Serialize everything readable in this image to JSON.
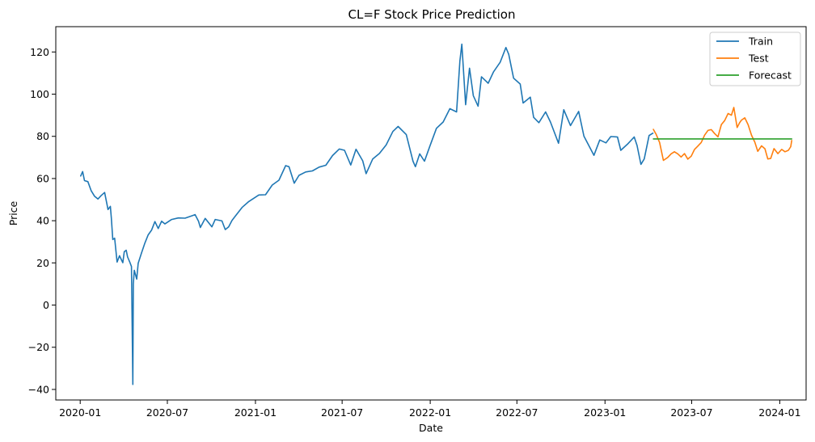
{
  "chart_data": {
    "type": "line",
    "title": "CL=F Stock Price Prediction",
    "xlabel": "Date",
    "ylabel": "Price",
    "xlim": [
      "2019-11-11",
      "2024-02-25"
    ],
    "ylim": [
      -45,
      132
    ],
    "x_ticks": [
      "2020-01",
      "2020-07",
      "2021-01",
      "2021-07",
      "2022-01",
      "2022-07",
      "2023-01",
      "2023-07",
      "2024-01"
    ],
    "y_ticks": [
      -40,
      -20,
      0,
      20,
      40,
      60,
      80,
      100,
      120
    ],
    "grid": false,
    "legend": "top-right",
    "series": [
      {
        "name": "Train",
        "color": "#1f77b4",
        "points": [
          [
            "2020-01-02",
            61.2
          ],
          [
            "2020-01-06",
            63.3
          ],
          [
            "2020-01-10",
            59.0
          ],
          [
            "2020-01-17",
            58.5
          ],
          [
            "2020-01-24",
            54.2
          ],
          [
            "2020-01-31",
            51.6
          ],
          [
            "2020-02-07",
            50.3
          ],
          [
            "2020-02-14",
            52.0
          ],
          [
            "2020-02-21",
            53.4
          ],
          [
            "2020-02-28",
            45.3
          ],
          [
            "2020-03-04",
            46.8
          ],
          [
            "2020-03-06",
            41.3
          ],
          [
            "2020-03-09",
            31.1
          ],
          [
            "2020-03-13",
            31.7
          ],
          [
            "2020-03-18",
            20.4
          ],
          [
            "2020-03-23",
            23.4
          ],
          [
            "2020-03-30",
            20.1
          ],
          [
            "2020-04-02",
            25.3
          ],
          [
            "2020-04-06",
            26.0
          ],
          [
            "2020-04-09",
            22.8
          ],
          [
            "2020-04-14",
            20.1
          ],
          [
            "2020-04-17",
            18.3
          ],
          [
            "2020-04-20",
            -37.6
          ],
          [
            "2020-04-21",
            10.0
          ],
          [
            "2020-04-23",
            16.5
          ],
          [
            "2020-04-28",
            12.3
          ],
          [
            "2020-05-01",
            19.8
          ],
          [
            "2020-05-08",
            24.7
          ],
          [
            "2020-05-15",
            29.4
          ],
          [
            "2020-05-22",
            33.3
          ],
          [
            "2020-05-29",
            35.5
          ],
          [
            "2020-06-05",
            39.6
          ],
          [
            "2020-06-12",
            36.3
          ],
          [
            "2020-06-19",
            39.8
          ],
          [
            "2020-06-26",
            38.5
          ],
          [
            "2020-07-10",
            40.6
          ],
          [
            "2020-07-24",
            41.3
          ],
          [
            "2020-08-07",
            41.2
          ],
          [
            "2020-08-21",
            42.3
          ],
          [
            "2020-08-28",
            42.9
          ],
          [
            "2020-09-04",
            39.8
          ],
          [
            "2020-09-08",
            36.8
          ],
          [
            "2020-09-18",
            41.1
          ],
          [
            "2020-10-02",
            37.1
          ],
          [
            "2020-10-09",
            40.6
          ],
          [
            "2020-10-23",
            39.9
          ],
          [
            "2020-10-30",
            35.8
          ],
          [
            "2020-11-06",
            37.1
          ],
          [
            "2020-11-13",
            40.1
          ],
          [
            "2020-11-20",
            42.2
          ],
          [
            "2020-12-04",
            46.3
          ],
          [
            "2020-12-18",
            49.1
          ],
          [
            "2021-01-08",
            52.2
          ],
          [
            "2021-01-22",
            52.3
          ],
          [
            "2021-02-05",
            56.9
          ],
          [
            "2021-02-19",
            59.2
          ],
          [
            "2021-03-05",
            66.1
          ],
          [
            "2021-03-12",
            65.6
          ],
          [
            "2021-03-23",
            57.8
          ],
          [
            "2021-04-02",
            61.5
          ],
          [
            "2021-04-16",
            63.1
          ],
          [
            "2021-04-30",
            63.6
          ],
          [
            "2021-05-14",
            65.4
          ],
          [
            "2021-05-28",
            66.3
          ],
          [
            "2021-06-11",
            70.9
          ],
          [
            "2021-06-25",
            74.0
          ],
          [
            "2021-07-06",
            73.4
          ],
          [
            "2021-07-19",
            66.4
          ],
          [
            "2021-07-30",
            73.9
          ],
          [
            "2021-08-13",
            68.4
          ],
          [
            "2021-08-20",
            62.3
          ],
          [
            "2021-09-03",
            69.3
          ],
          [
            "2021-09-17",
            71.9
          ],
          [
            "2021-10-01",
            75.9
          ],
          [
            "2021-10-15",
            82.3
          ],
          [
            "2021-10-26",
            84.7
          ],
          [
            "2021-11-12",
            80.8
          ],
          [
            "2021-11-26",
            68.2
          ],
          [
            "2021-12-01",
            65.6
          ],
          [
            "2021-12-10",
            71.7
          ],
          [
            "2021-12-20",
            68.2
          ],
          [
            "2021-12-31",
            75.2
          ],
          [
            "2022-01-14",
            83.8
          ],
          [
            "2022-01-28",
            86.8
          ],
          [
            "2022-02-11",
            93.1
          ],
          [
            "2022-02-25",
            91.6
          ],
          [
            "2022-03-04",
            115.7
          ],
          [
            "2022-03-08",
            123.7
          ],
          [
            "2022-03-16",
            95.0
          ],
          [
            "2022-03-24",
            112.3
          ],
          [
            "2022-04-01",
            99.3
          ],
          [
            "2022-04-11",
            94.3
          ],
          [
            "2022-04-18",
            108.2
          ],
          [
            "2022-05-02",
            105.2
          ],
          [
            "2022-05-13",
            110.5
          ],
          [
            "2022-05-27",
            115.1
          ],
          [
            "2022-06-08",
            122.1
          ],
          [
            "2022-06-14",
            118.9
          ],
          [
            "2022-06-24",
            107.6
          ],
          [
            "2022-07-08",
            104.8
          ],
          [
            "2022-07-14",
            95.8
          ],
          [
            "2022-07-29",
            98.6
          ],
          [
            "2022-08-05",
            89.0
          ],
          [
            "2022-08-16",
            86.5
          ],
          [
            "2022-08-30",
            91.6
          ],
          [
            "2022-09-09",
            86.8
          ],
          [
            "2022-09-26",
            76.7
          ],
          [
            "2022-10-07",
            92.6
          ],
          [
            "2022-10-21",
            85.1
          ],
          [
            "2022-11-07",
            91.8
          ],
          [
            "2022-11-18",
            80.1
          ],
          [
            "2022-12-09",
            71.0
          ],
          [
            "2022-12-21",
            78.3
          ],
          [
            "2023-01-03",
            76.9
          ],
          [
            "2023-01-13",
            79.9
          ],
          [
            "2023-01-27",
            79.7
          ],
          [
            "2023-02-03",
            73.4
          ],
          [
            "2023-02-17",
            76.3
          ],
          [
            "2023-03-03",
            79.7
          ],
          [
            "2023-03-09",
            75.7
          ],
          [
            "2023-03-17",
            66.7
          ],
          [
            "2023-03-24",
            69.3
          ],
          [
            "2023-04-03",
            80.4
          ],
          [
            "2023-04-11",
            81.5
          ]
        ]
      },
      {
        "name": "Test",
        "color": "#ff7f0e",
        "points": [
          [
            "2023-04-12",
            83.3
          ],
          [
            "2023-04-18",
            80.9
          ],
          [
            "2023-04-25",
            77.1
          ],
          [
            "2023-05-03",
            68.6
          ],
          [
            "2023-05-12",
            70.0
          ],
          [
            "2023-05-19",
            71.7
          ],
          [
            "2023-05-26",
            72.7
          ],
          [
            "2023-06-02",
            71.7
          ],
          [
            "2023-06-09",
            70.2
          ],
          [
            "2023-06-16",
            71.8
          ],
          [
            "2023-06-23",
            69.2
          ],
          [
            "2023-06-30",
            70.6
          ],
          [
            "2023-07-07",
            73.8
          ],
          [
            "2023-07-14",
            75.4
          ],
          [
            "2023-07-21",
            77.1
          ],
          [
            "2023-07-28",
            80.6
          ],
          [
            "2023-08-04",
            82.8
          ],
          [
            "2023-08-11",
            83.2
          ],
          [
            "2023-08-18",
            81.3
          ],
          [
            "2023-08-25",
            79.8
          ],
          [
            "2023-09-01",
            85.6
          ],
          [
            "2023-09-08",
            87.5
          ],
          [
            "2023-09-15",
            90.8
          ],
          [
            "2023-09-22",
            90.0
          ],
          [
            "2023-09-27",
            93.7
          ],
          [
            "2023-10-04",
            84.2
          ],
          [
            "2023-10-09",
            86.4
          ],
          [
            "2023-10-13",
            87.7
          ],
          [
            "2023-10-20",
            88.8
          ],
          [
            "2023-10-27",
            85.5
          ],
          [
            "2023-11-03",
            80.5
          ],
          [
            "2023-11-10",
            77.2
          ],
          [
            "2023-11-16",
            72.9
          ],
          [
            "2023-11-24",
            75.5
          ],
          [
            "2023-12-01",
            74.1
          ],
          [
            "2023-12-07",
            69.3
          ],
          [
            "2023-12-13",
            69.5
          ],
          [
            "2023-12-20",
            74.2
          ],
          [
            "2023-12-28",
            71.8
          ],
          [
            "2024-01-05",
            73.8
          ],
          [
            "2024-01-12",
            72.7
          ],
          [
            "2024-01-19",
            73.4
          ],
          [
            "2024-01-24",
            75.1
          ],
          [
            "2024-01-26",
            78.0
          ]
        ]
      },
      {
        "name": "Forecast",
        "color": "#2ca02c",
        "points": [
          [
            "2023-04-12",
            78.8
          ],
          [
            "2024-01-26",
            78.8
          ]
        ]
      }
    ]
  }
}
